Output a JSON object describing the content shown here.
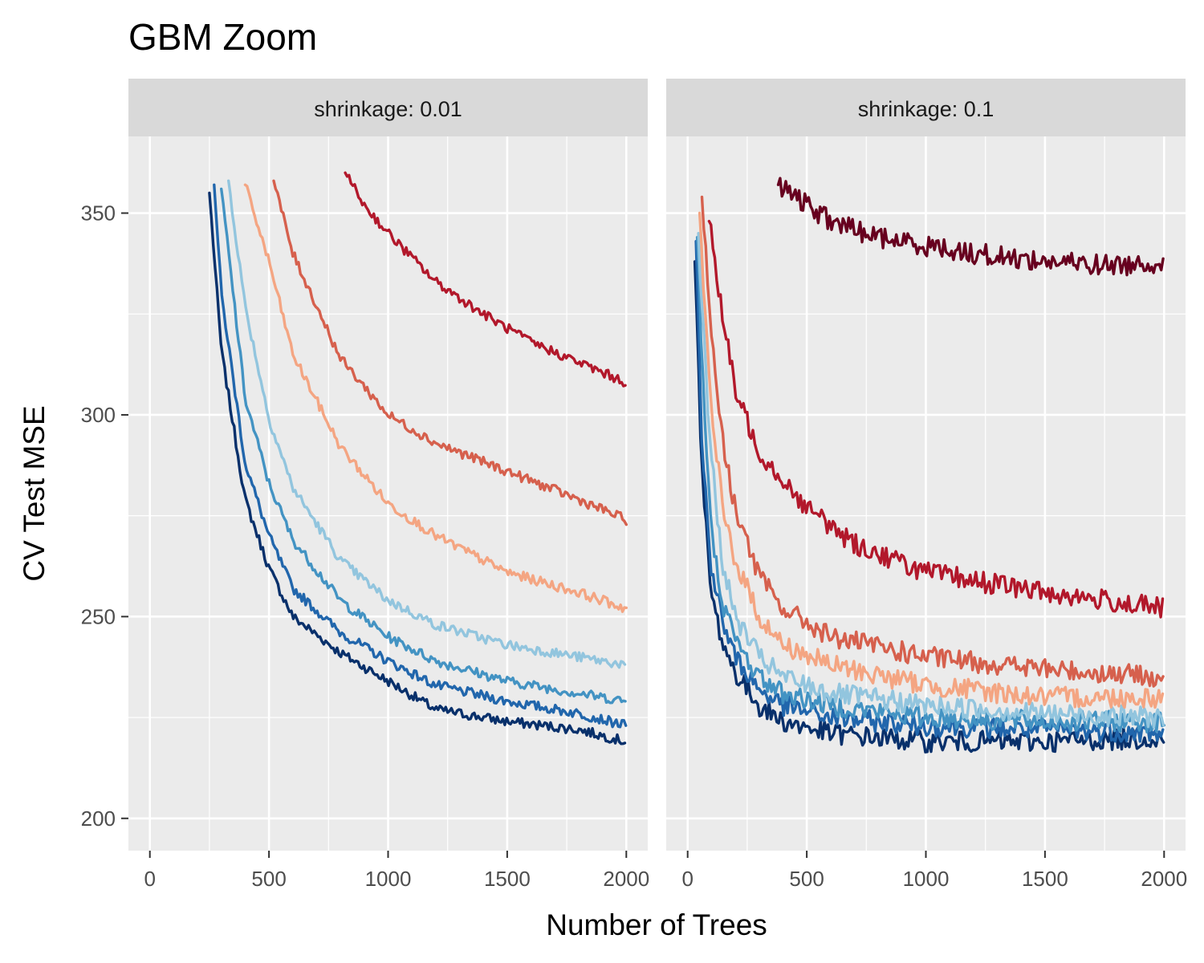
{
  "chart_data": {
    "type": "line",
    "title": "GBM Zoom",
    "xlabel": "Number of Trees",
    "ylabel": "CV Test MSE",
    "xlim": [
      -90,
      2090
    ],
    "ylim": [
      192,
      369
    ],
    "xticks": [
      0,
      500,
      1000,
      1500,
      2000
    ],
    "yticks": [
      200,
      250,
      300,
      350
    ],
    "grid": true,
    "legend": "none",
    "panels": [
      {
        "strip": "shrinkage: 0.01",
        "series": [
          {
            "color": "#08306B",
            "x": [
              250,
              300,
              400,
              500,
              600,
              800,
              1000,
              1200,
              1500,
              1800,
              2000
            ],
            "y": [
              355,
              316,
              279,
              262,
              250,
              241,
              234,
              227,
              224,
              222,
              219
            ]
          },
          {
            "color": "#2166AC",
            "x": [
              270,
              300,
              400,
              500,
              600,
              800,
              1000,
              1200,
              1500,
              1800,
              2000
            ],
            "y": [
              357,
              330,
              288,
              270,
              257,
              246,
              239,
              233,
              229,
              226,
              223
            ]
          },
          {
            "color": "#4393C3",
            "x": [
              300,
              400,
              500,
              600,
              800,
              1000,
              1200,
              1500,
              1800,
              2000
            ],
            "y": [
              356,
              304,
              283,
              269,
              254,
              245,
              239,
              234,
              231,
              229
            ]
          },
          {
            "color": "#92C5DE",
            "x": [
              330,
              400,
              500,
              600,
              800,
              1000,
              1200,
              1500,
              1800,
              2000
            ],
            "y": [
              358,
              327,
              299,
              282,
              264,
              254,
              248,
              243,
              240,
              238
            ]
          },
          {
            "color": "#F4A582",
            "x": [
              400,
              500,
              600,
              800,
              1000,
              1200,
              1500,
              1800,
              2000
            ],
            "y": [
              357,
              338,
              315,
              292,
              278,
              270,
              261,
              256,
              252
            ]
          },
          {
            "color": "#D6604D",
            "x": [
              520,
              600,
              800,
              1000,
              1200,
              1500,
              1800,
              2000
            ],
            "y": [
              358,
              340,
              314,
              300,
              293,
              286,
              279,
              274
            ]
          },
          {
            "color": "#B2182B",
            "x": [
              820,
              900,
              1000,
              1200,
              1400,
              1600,
              1800,
              2000
            ],
            "y": [
              360,
              352,
              345,
              333,
              325,
              318,
              313,
              308
            ]
          }
        ]
      },
      {
        "strip": "shrinkage: 0.1",
        "series": [
          {
            "color": "#08306B",
            "x": [
              30,
              60,
              100,
              150,
              200,
              300,
              400,
              600,
              1000,
              1500,
              2000
            ],
            "y": [
              338,
              285,
              255,
              243,
              236,
              228,
              224,
              221,
              219,
              219,
              220
            ]
          },
          {
            "color": "#2166AC",
            "x": [
              35,
              60,
              100,
              150,
              200,
              300,
              400,
              600,
              1000,
              1500,
              2000
            ],
            "y": [
              343,
              292,
              262,
              248,
              240,
              232,
              228,
              225,
              223,
              222,
              221
            ]
          },
          {
            "color": "#4393C3",
            "x": [
              40,
              70,
              100,
              150,
              200,
              300,
              400,
              600,
              1000,
              1500,
              2000
            ],
            "y": [
              344,
              300,
              270,
              253,
              244,
              235,
              231,
              228,
              225,
              224,
              224
            ]
          },
          {
            "color": "#92C5DE",
            "x": [
              45,
              80,
              120,
              150,
              200,
              300,
              400,
              600,
              1000,
              1500,
              2000
            ],
            "y": [
              345,
              305,
              277,
              262,
              250,
              240,
              235,
              231,
              228,
              226,
              225
            ]
          },
          {
            "color": "#F4A582",
            "x": [
              50,
              80,
              100,
              150,
              200,
              300,
              400,
              600,
              1000,
              1500,
              2000
            ],
            "y": [
              350,
              318,
              300,
              276,
              264,
              250,
              243,
              238,
              233,
              230,
              230
            ]
          },
          {
            "color": "#D6604D",
            "x": [
              60,
              100,
              150,
              200,
              300,
              400,
              600,
              1000,
              1500,
              2000
            ],
            "y": [
              354,
              320,
              292,
              277,
              260,
              252,
              245,
              240,
              237,
              235
            ]
          },
          {
            "color": "#B2182B",
            "x": [
              90,
              150,
              200,
              300,
              400,
              500,
              700,
              1000,
              1500,
              2000
            ],
            "y": [
              348,
              323,
              306,
              291,
              284,
              277,
              268,
              261,
              256,
              252
            ]
          },
          {
            "color": "#67001F",
            "x": [
              380,
              450,
              500,
              600,
              700,
              800,
              1000,
              1200,
              1500,
              1800,
              2000
            ],
            "y": [
              357,
              354,
              352,
              348,
              346,
              344,
              342,
              340,
              338,
              337,
              338
            ]
          }
        ]
      }
    ]
  }
}
